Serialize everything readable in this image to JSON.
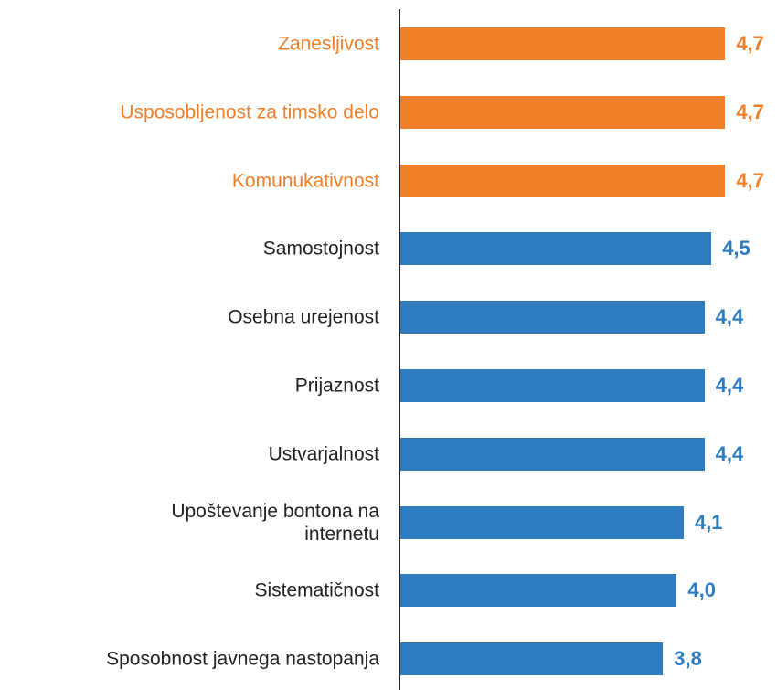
{
  "chart_data": {
    "type": "bar",
    "orientation": "horizontal",
    "categories": [
      "Zanesljivost",
      "Usposobljenost za timsko delo",
      "Komunukativnost",
      "Samostojnost",
      "Osebna urejenost",
      "Prijaznost",
      "Ustvarjalnost",
      "Upoštevanje bontona na\ninternetu",
      "Sistematičnost",
      "Sposobnost javnega nastopanja"
    ],
    "values": [
      4.7,
      4.7,
      4.7,
      4.5,
      4.4,
      4.4,
      4.4,
      4.1,
      4.0,
      3.8
    ],
    "value_labels": [
      "4,7",
      "4,7",
      "4,7",
      "4,5",
      "4,4",
      "4,4",
      "4,4",
      "4,1",
      "4,0",
      "3,8"
    ],
    "colors": [
      "#f07f2a",
      "#f07f2a",
      "#f07f2a",
      "#2e7bc0",
      "#2e7bc0",
      "#2e7bc0",
      "#2e7bc0",
      "#2e7bc0",
      "#2e7bc0",
      "#2e7bc0"
    ],
    "xlim": [
      0,
      5
    ]
  }
}
